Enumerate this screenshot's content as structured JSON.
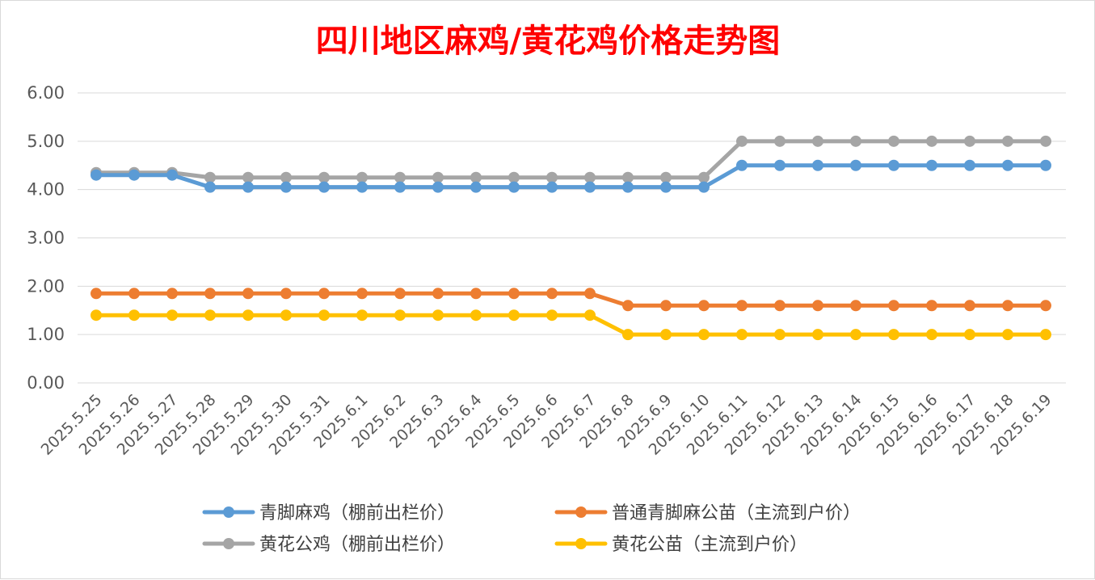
{
  "chart_data": {
    "type": "line",
    "title": "四川地区麻鸡/黄花鸡价格走势图",
    "xlabel": "",
    "ylabel": "",
    "ylim": [
      0,
      6
    ],
    "yticks": [
      "0.00",
      "1.00",
      "2.00",
      "3.00",
      "4.00",
      "5.00",
      "6.00"
    ],
    "grid": true,
    "legend_position": "bottom",
    "categories": [
      "2025.5.25",
      "2025.5.26",
      "2025.5.27",
      "2025.5.28",
      "2025.5.29",
      "2025.5.30",
      "2025.5.31",
      "2025.6.1",
      "2025.6.2",
      "2025.6.3",
      "2025.6.4",
      "2025.6.5",
      "2025.6.6",
      "2025.6.7",
      "2025.6.8",
      "2025.6.9",
      "2025.6.10",
      "2025.6.11",
      "2025.6.12",
      "2025.6.13",
      "2025.6.14",
      "2025.6.15",
      "2025.6.16",
      "2025.6.17",
      "2025.6.18",
      "2025.6.19"
    ],
    "series": [
      {
        "name": "青脚麻鸡（棚前出栏价）",
        "color": "#5b9bd5",
        "values": [
          4.3,
          4.3,
          4.3,
          4.05,
          4.05,
          4.05,
          4.05,
          4.05,
          4.05,
          4.05,
          4.05,
          4.05,
          4.05,
          4.05,
          4.05,
          4.05,
          4.05,
          4.5,
          4.5,
          4.5,
          4.5,
          4.5,
          4.5,
          4.5,
          4.5,
          4.5
        ]
      },
      {
        "name": "普通青脚麻公苗（主流到户价）",
        "color": "#ed7d31",
        "values": [
          1.85,
          1.85,
          1.85,
          1.85,
          1.85,
          1.85,
          1.85,
          1.85,
          1.85,
          1.85,
          1.85,
          1.85,
          1.85,
          1.85,
          1.6,
          1.6,
          1.6,
          1.6,
          1.6,
          1.6,
          1.6,
          1.6,
          1.6,
          1.6,
          1.6,
          1.6
        ]
      },
      {
        "name": "黄花公鸡（棚前出栏价）",
        "color": "#a5a5a5",
        "values": [
          4.35,
          4.35,
          4.35,
          4.25,
          4.25,
          4.25,
          4.25,
          4.25,
          4.25,
          4.25,
          4.25,
          4.25,
          4.25,
          4.25,
          4.25,
          4.25,
          4.25,
          5.0,
          5.0,
          5.0,
          5.0,
          5.0,
          5.0,
          5.0,
          5.0,
          5.0
        ]
      },
      {
        "name": "黄花公苗（主流到户价）",
        "color": "#ffc000",
        "values": [
          1.4,
          1.4,
          1.4,
          1.4,
          1.4,
          1.4,
          1.4,
          1.4,
          1.4,
          1.4,
          1.4,
          1.4,
          1.4,
          1.4,
          1.0,
          1.0,
          1.0,
          1.0,
          1.0,
          1.0,
          1.0,
          1.0,
          1.0,
          1.0,
          1.0,
          1.0
        ]
      }
    ]
  }
}
